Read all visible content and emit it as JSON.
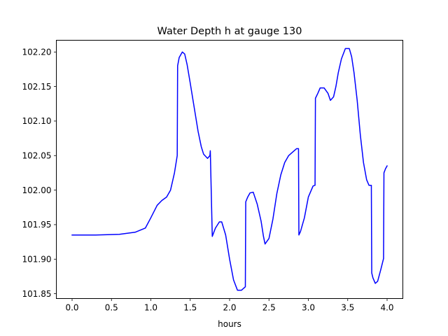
{
  "chart_data": {
    "type": "line",
    "title": "Water Depth h at gauge 130",
    "xlabel": "hours",
    "ylabel": "",
    "xlim": [
      -0.2,
      4.2
    ],
    "ylim": [
      101.843,
      102.217
    ],
    "xticks": [
      0.0,
      0.5,
      1.0,
      1.5,
      2.0,
      2.5,
      3.0,
      3.5,
      4.0
    ],
    "xtick_labels": [
      "0.0",
      "0.5",
      "1.0",
      "1.5",
      "2.0",
      "2.5",
      "3.0",
      "3.5",
      "4.0"
    ],
    "yticks": [
      101.85,
      101.9,
      101.95,
      102.0,
      102.05,
      102.1,
      102.15,
      102.2
    ],
    "ytick_labels": [
      "101.85",
      "101.90",
      "101.95",
      "102.00",
      "102.05",
      "102.10",
      "102.15",
      "102.20"
    ],
    "grid": false,
    "series": [
      {
        "color": "#0000ff",
        "x": [
          0.0,
          0.3,
          0.6,
          0.8,
          0.93,
          1.0,
          1.08,
          1.14,
          1.2,
          1.25,
          1.3,
          1.335,
          1.34,
          1.36,
          1.4,
          1.43,
          1.46,
          1.5,
          1.55,
          1.6,
          1.64,
          1.67,
          1.72,
          1.75,
          1.755,
          1.78,
          1.82,
          1.87,
          1.9,
          1.95,
          2.0,
          2.05,
          2.1,
          2.15,
          2.18,
          2.2,
          2.205,
          2.23,
          2.26,
          2.3,
          2.35,
          2.4,
          2.43,
          2.45,
          2.5,
          2.55,
          2.6,
          2.65,
          2.7,
          2.75,
          2.8,
          2.85,
          2.875,
          2.88,
          2.9,
          2.95,
          3.0,
          3.06,
          3.085,
          3.09,
          3.12,
          3.15,
          3.2,
          3.25,
          3.28,
          3.32,
          3.35,
          3.38,
          3.42,
          3.47,
          3.52,
          3.55,
          3.58,
          3.62,
          3.66,
          3.7,
          3.74,
          3.77,
          3.8,
          3.805,
          3.82,
          3.85,
          3.88,
          3.92,
          3.955,
          3.96,
          3.98,
          4.0
        ],
        "y": [
          101.935,
          101.935,
          101.936,
          101.939,
          101.945,
          101.96,
          101.978,
          101.985,
          101.99,
          102.0,
          102.025,
          102.05,
          102.18,
          102.192,
          102.2,
          102.197,
          102.182,
          102.155,
          102.12,
          102.085,
          102.063,
          102.052,
          102.046,
          102.05,
          102.057,
          101.933,
          101.945,
          101.954,
          101.954,
          101.935,
          101.9,
          101.87,
          101.855,
          101.855,
          101.858,
          101.86,
          101.983,
          101.99,
          101.996,
          101.997,
          101.98,
          101.955,
          101.933,
          101.922,
          101.93,
          101.958,
          101.995,
          102.022,
          102.04,
          102.05,
          102.055,
          102.06,
          102.06,
          101.935,
          101.94,
          101.96,
          101.99,
          102.006,
          102.007,
          102.133,
          102.14,
          102.148,
          102.148,
          102.14,
          102.13,
          102.135,
          102.15,
          102.17,
          102.19,
          102.205,
          102.205,
          102.193,
          102.17,
          102.13,
          102.08,
          102.04,
          102.015,
          102.007,
          102.007,
          101.88,
          101.873,
          101.865,
          101.868,
          101.885,
          101.901,
          102.025,
          102.031,
          102.035
        ]
      }
    ]
  }
}
